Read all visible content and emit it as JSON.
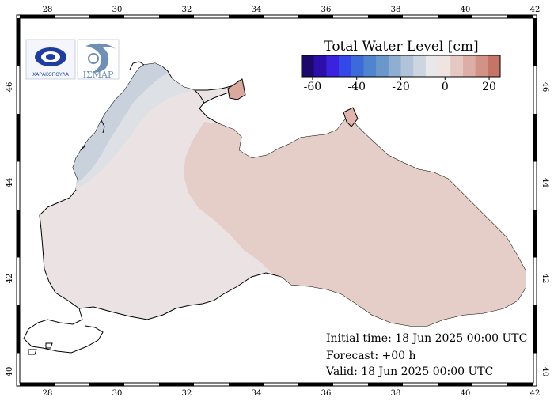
{
  "map": {
    "region": "Black Sea",
    "lon_ticks": [
      "28",
      "30",
      "32",
      "34",
      "36",
      "38",
      "40",
      "42"
    ],
    "lat_ticks": [
      "40",
      "42",
      "44",
      "46"
    ],
    "lon_range": [
      27.3,
      42.0
    ],
    "lat_range": [
      39.7,
      47.2
    ],
    "land_color": "#ffffff",
    "coast_color": "#000000"
  },
  "legend": {
    "title": "Total Water Level [cm]",
    "tick_labels": [
      "-60",
      "-40",
      "-20",
      "0",
      "20"
    ],
    "range": [
      -65,
      25
    ],
    "colors": [
      "#1c0a6a",
      "#2c0fa8",
      "#3a22df",
      "#3348e8",
      "#3c6ad8",
      "#4f84cf",
      "#6a98cb",
      "#8eaed2",
      "#b0c3d8",
      "#cdd6e0",
      "#e8e8ea",
      "#efe4e2",
      "#e6c8c3",
      "#dcaea6",
      "#d19385",
      "#c47566"
    ]
  },
  "info": {
    "initial": "Initial time: 18 Jun 2025 00:00 UTC",
    "forecast": "Forecast: +00 h",
    "valid": "Valid: 18 Jun 2025 00:00 UTC"
  },
  "logos": {
    "left_text": "ΧΑΡΑΚΟΠΟΥΛΑ",
    "right_text": "ΙΣΜΑΡ"
  }
}
